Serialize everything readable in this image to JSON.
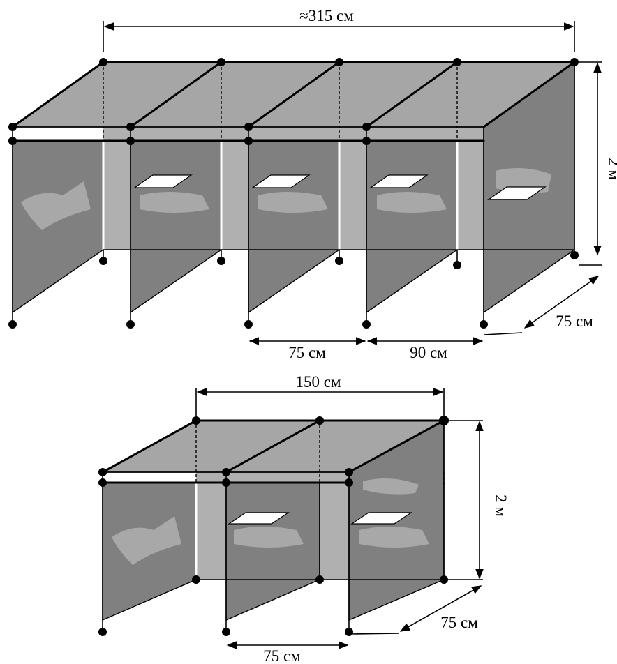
{
  "diagram_top": {
    "width_label": "≈315 см",
    "height_label": "2 м",
    "depth_label": "75 см",
    "cell_label": "75 см",
    "end_cell_label": "90 см"
  },
  "diagram_bottom": {
    "width_label": "150 см",
    "height_label": "2 м",
    "depth_label": "75 см",
    "cell_label": "75 см"
  },
  "colors": {
    "roof": "#a6a6a6",
    "panel": "#808080",
    "back_wall": "#b0b0b0",
    "frame": "#000000"
  }
}
